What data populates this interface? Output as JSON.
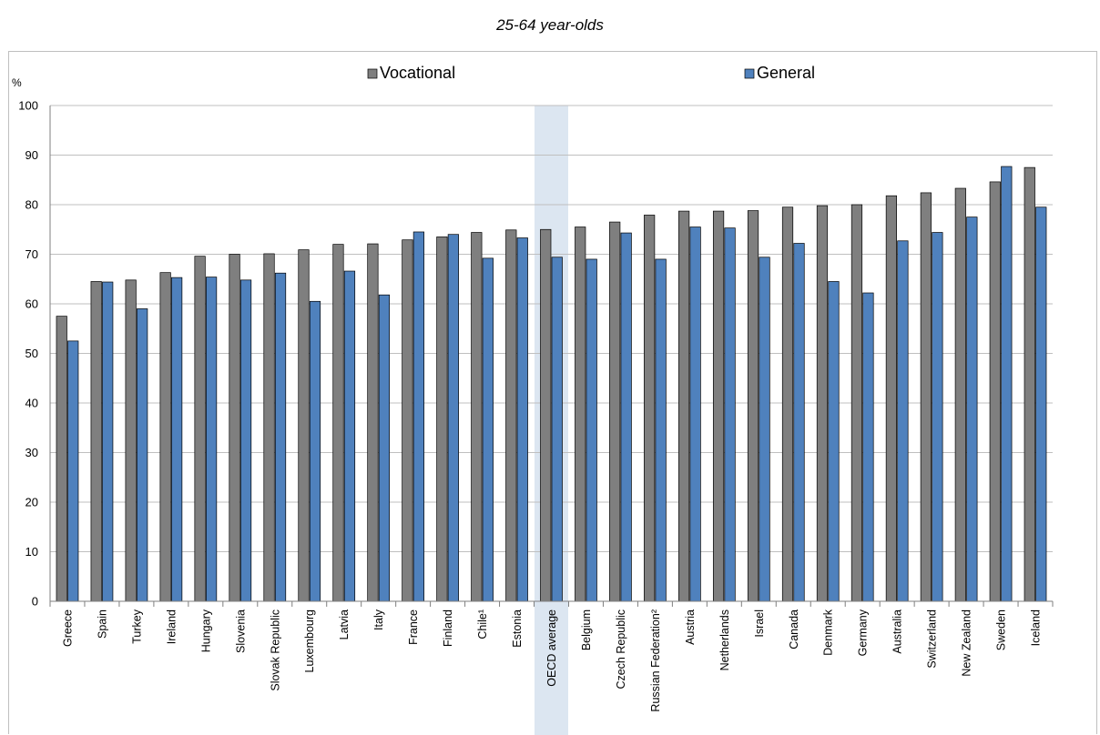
{
  "chart_data": {
    "type": "bar",
    "title": "25-64 year-olds",
    "ylabel": "%",
    "ylim": [
      0,
      100
    ],
    "yticks": [
      0,
      10,
      20,
      30,
      40,
      50,
      60,
      70,
      80,
      90,
      100
    ],
    "grid": true,
    "legend_position": "top",
    "categories": [
      "Greece",
      "Spain",
      "Turkey",
      "Ireland",
      "Hungary",
      "Slovenia",
      "Slovak Republic",
      "Luxembourg",
      "Latvia",
      "Italy",
      "France",
      "Finland",
      "Chile¹",
      "Estonia",
      "OECD average",
      "Belgium",
      "Czech Republic",
      "Russian Federation²",
      "Austria",
      "Netherlands",
      "Israel",
      "Canada",
      "Denmark",
      "Germany",
      "Australia",
      "Switzerland",
      "New Zealand",
      "Sweden",
      "Iceland"
    ],
    "highlighted_category": "OECD average",
    "series": [
      {
        "name": "Vocational",
        "color": "#7f7f7f",
        "values": [
          57.5,
          64.5,
          64.8,
          66.3,
          69.6,
          70.0,
          70.1,
          70.9,
          72.0,
          72.1,
          72.9,
          73.5,
          74.4,
          74.9,
          75.0,
          75.5,
          76.5,
          77.9,
          78.7,
          78.7,
          78.8,
          79.5,
          79.8,
          80.0,
          81.8,
          82.4,
          83.3,
          84.6,
          87.5
        ]
      },
      {
        "name": "General",
        "color": "#4f81bd",
        "values": [
          52.5,
          64.4,
          59.0,
          65.3,
          65.4,
          64.8,
          66.2,
          60.5,
          66.6,
          61.8,
          74.5,
          74.0,
          69.2,
          73.3,
          69.4,
          69.0,
          74.3,
          69.0,
          75.5,
          75.3,
          69.4,
          72.2,
          64.5,
          62.2,
          72.7,
          74.4,
          77.5,
          87.7,
          79.5
        ]
      }
    ],
    "colors": {
      "highlight_band": "#dce6f1",
      "gridline": "#bfbfbf",
      "bar_outline": "#000000"
    }
  }
}
